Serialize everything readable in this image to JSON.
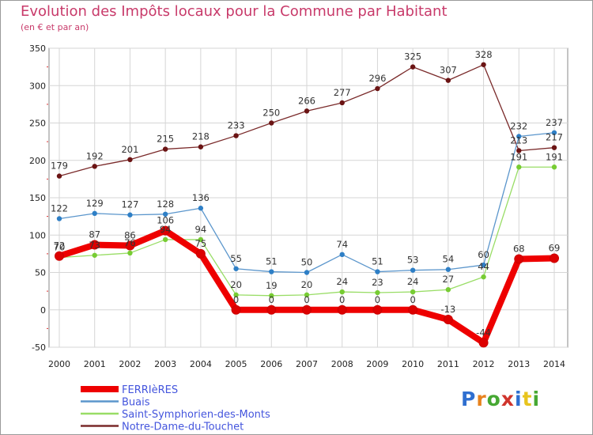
{
  "title": "Evolution des Impôts locaux pour la Commune par Habitant",
  "subtitle": "(en € et par an)",
  "logo": {
    "text": "Proxiti",
    "colors": [
      "#2f6fd0",
      "#e8821e",
      "#46a833",
      "#d0342c",
      "#2f6fd0",
      "#e8c41e",
      "#46a833"
    ]
  },
  "chart_data": {
    "type": "line",
    "x": [
      "2000",
      "2001",
      "2002",
      "2003",
      "2004",
      "2005",
      "2006",
      "2007",
      "2008",
      "2009",
      "2010",
      "2011",
      "2012",
      "2013",
      "2014"
    ],
    "ylim": [
      -50,
      350
    ],
    "yticks": [
      -50,
      0,
      50,
      100,
      150,
      200,
      250,
      300,
      350
    ],
    "grid": true,
    "legend_position": "bottom-left",
    "series": [
      {
        "name": "FERRIèRES",
        "color": "#ee0000",
        "marker": "#dd0000",
        "values": [
          72,
          87,
          86,
          106,
          75,
          0,
          0,
          0,
          0,
          0,
          0,
          -13,
          -44,
          68,
          69
        ],
        "labels": [
          "72",
          "87",
          "86",
          "106",
          "75",
          "0",
          "0",
          "0",
          "0",
          "0",
          "0",
          "-13",
          "-44",
          "68",
          "69"
        ]
      },
      {
        "name": "Buais",
        "color": "#5b96cc",
        "marker": "#2e7fc6",
        "values": [
          122,
          129,
          127,
          128,
          136,
          55,
          51,
          50,
          74,
          51,
          53,
          54,
          60,
          232,
          237
        ],
        "labels": [
          "122",
          "129",
          "127",
          "128",
          "136",
          "55",
          "51",
          "50",
          "74",
          "51",
          "53",
          "54",
          "60",
          "232",
          "237"
        ]
      },
      {
        "name": "Saint-Symphorien-des-Monts",
        "color": "#99dd66",
        "marker": "#77cc33",
        "values": [
          70,
          73,
          76,
          94,
          94,
          20,
          19,
          20,
          24,
          23,
          24,
          27,
          44,
          191,
          191
        ],
        "labels": [
          "70",
          "73",
          "76",
          "94",
          "94",
          "20",
          "19",
          "20",
          "24",
          "23",
          "24",
          "27",
          "44",
          "191",
          "191"
        ]
      },
      {
        "name": "Notre-Dame-du-Touchet",
        "color": "#7a2a2a",
        "marker": "#6b1414",
        "values": [
          179,
          192,
          201,
          215,
          218,
          233,
          250,
          266,
          277,
          296,
          325,
          307,
          328,
          213,
          217
        ],
        "labels": [
          "179",
          "192",
          "201",
          "215",
          "218",
          "233",
          "250",
          "266",
          "277",
          "296",
          "325",
          "307",
          "328",
          "213",
          "217"
        ]
      }
    ]
  }
}
